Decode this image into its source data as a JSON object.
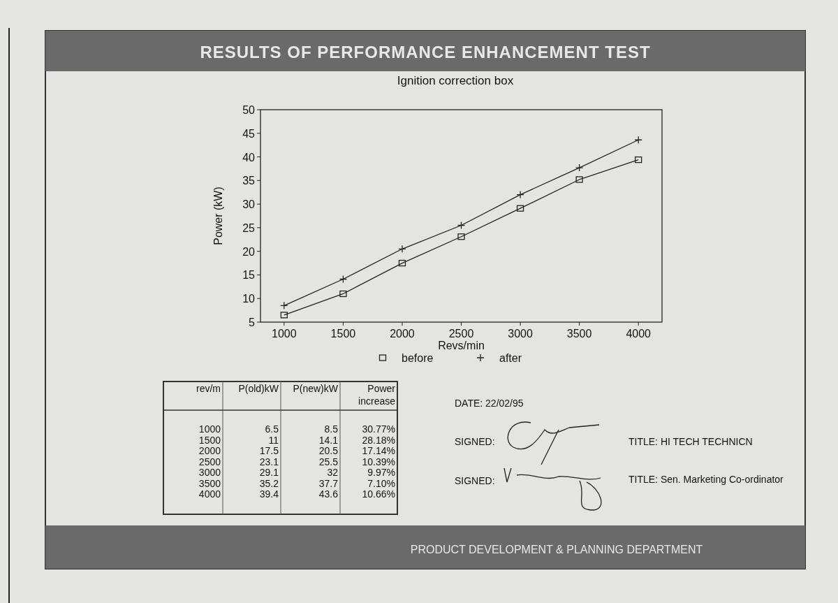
{
  "chart_data": {
    "type": "line",
    "title": "RESULTS OF PERFORMANCE ENHANCEMENT TEST",
    "subtitle": "Ignition correction box",
    "xlabel": "Revs/min",
    "ylabel": "Power (kW)",
    "x": [
      1000,
      1500,
      2000,
      2500,
      3000,
      3500,
      4000
    ],
    "series": [
      {
        "name": "before",
        "color": "#222222",
        "marker": "square",
        "values": [
          6.5,
          11,
          17.5,
          23.1,
          29.1,
          35.2,
          39.4
        ]
      },
      {
        "name": "after",
        "color": "#222222",
        "marker": "cross",
        "values": [
          8.5,
          14.1,
          20.5,
          25.5,
          32,
          37.7,
          43.6
        ]
      }
    ],
    "xlim": [
      800,
      4200
    ],
    "xticks": [
      1000,
      1500,
      2000,
      2500,
      3000,
      3500,
      4000
    ],
    "ylim": [
      5,
      50
    ],
    "yticks": [
      5,
      10,
      15,
      20,
      25,
      30,
      35,
      40,
      45,
      50
    ],
    "legend": "bottom",
    "grid": false,
    "line_style": "solid",
    "annotations": [
      "rev/m",
      "P(old)kW",
      "P(new)kW",
      "Power increase",
      "1000",
      "6.5",
      "8.5",
      "30.77%",
      "1500",
      "11",
      "14.1",
      "28.18%",
      "2000",
      "17.5",
      "20.5",
      "17.14%",
      "2500",
      "23.1",
      "25.5",
      "10.39%",
      "3000",
      "29.1",
      "32",
      "9.97%",
      "3500",
      "35.2",
      "37.7",
      "7.10%",
      "4000",
      "39.4",
      "43.6",
      "10.66%",
      "DATE: 22/02/95",
      "SIGNED:",
      "TITLE: HI TECH TECHNICN",
      "SIGNED:",
      "TITLE: Sen. Marketing Co-ordinator",
      "PRODUCT DEVELOPMENT & PLANNING DEPARTMENT"
    ]
  }
}
